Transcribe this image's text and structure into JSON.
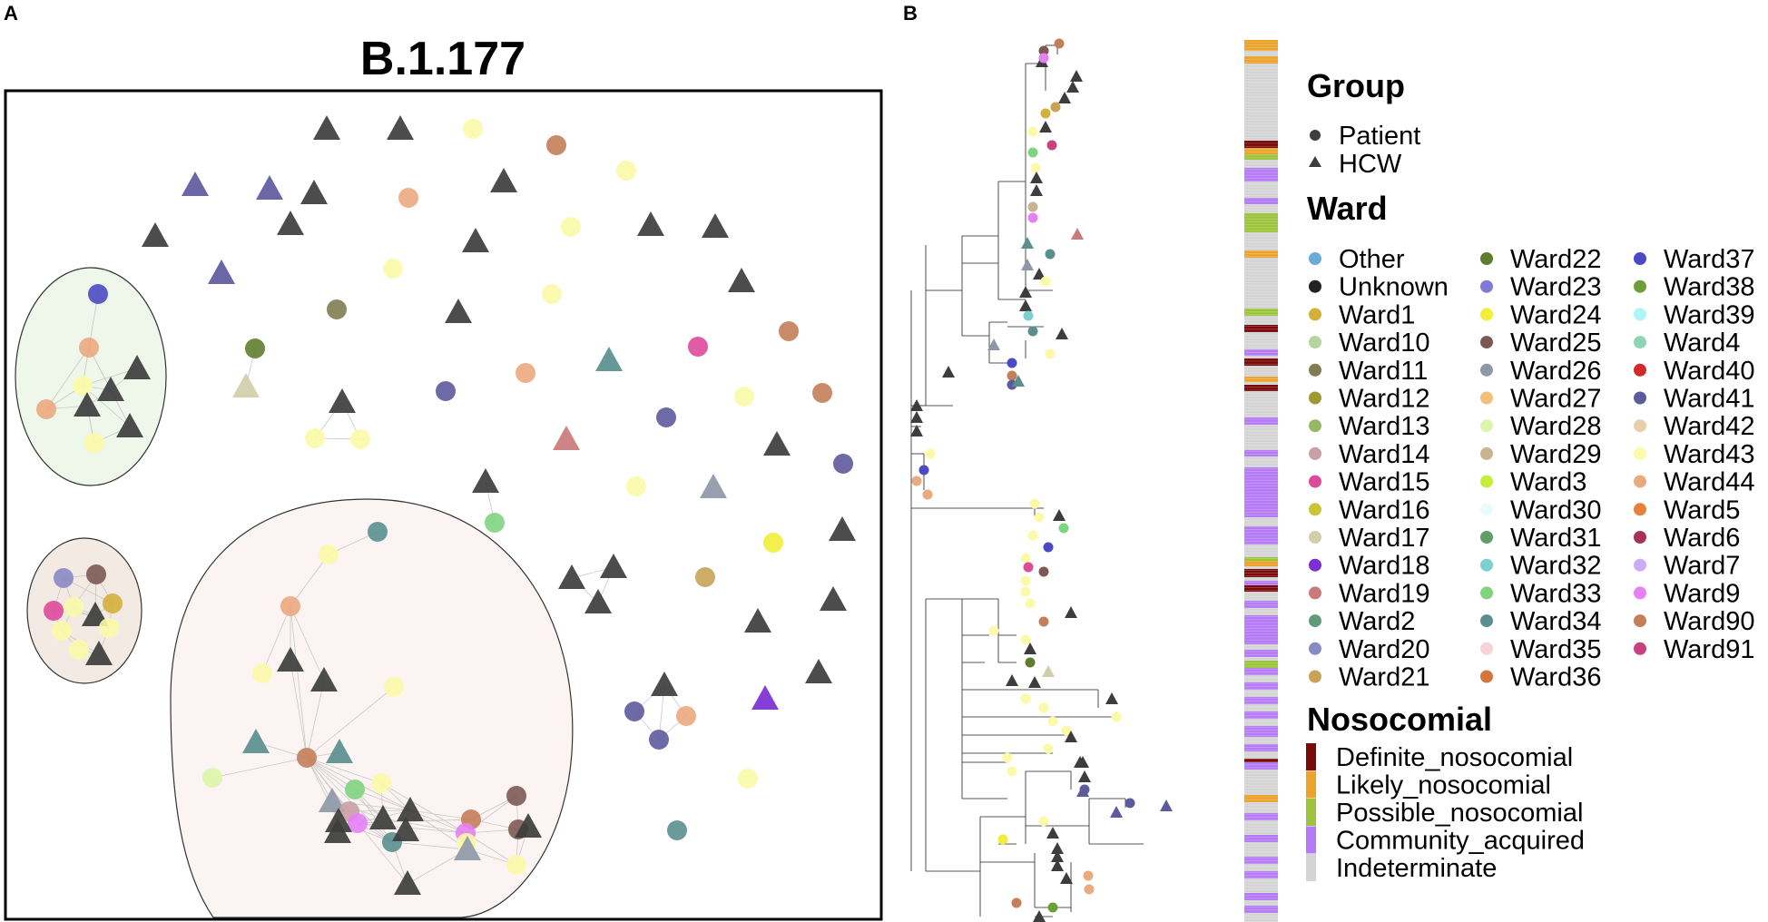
{
  "panel_a": {
    "label": "A",
    "title": "B.1.177"
  },
  "panel_b": {
    "label": "B"
  },
  "legend": {
    "group_title": "Group",
    "group_items": [
      {
        "label": "Patient",
        "shape": "circle"
      },
      {
        "label": "HCW",
        "shape": "triangle"
      }
    ],
    "ward_title": "Ward",
    "wards": [
      {
        "label": "Other",
        "color": "#6aaad6"
      },
      {
        "label": "Unknown",
        "color": "#222222"
      },
      {
        "label": "Ward1",
        "color": "#d4b03a"
      },
      {
        "label": "Ward10",
        "color": "#b5d4a0"
      },
      {
        "label": "Ward11",
        "color": "#7e7d52"
      },
      {
        "label": "Ward12",
        "color": "#9f9a30"
      },
      {
        "label": "Ward13",
        "color": "#96b865"
      },
      {
        "label": "Ward14",
        "color": "#c9a0a7"
      },
      {
        "label": "Ward15",
        "color": "#de4a9a"
      },
      {
        "label": "Ward16",
        "color": "#c9c43a"
      },
      {
        "label": "Ward17",
        "color": "#cfcfaa"
      },
      {
        "label": "Ward18",
        "color": "#7b2fd4"
      },
      {
        "label": "Ward19",
        "color": "#c97a7a"
      },
      {
        "label": "Ward2",
        "color": "#5f9c7a"
      },
      {
        "label": "Ward20",
        "color": "#8a8ac4"
      },
      {
        "label": "Ward21",
        "color": "#c6a356"
      },
      {
        "label": "Ward22",
        "color": "#5f7d2e"
      },
      {
        "label": "Ward23",
        "color": "#7f7ad6"
      },
      {
        "label": "Ward24",
        "color": "#f2ee3a"
      },
      {
        "label": "Ward25",
        "color": "#7d5954"
      },
      {
        "label": "Ward26",
        "color": "#8f98a8"
      },
      {
        "label": "Ward27",
        "color": "#f2c07a"
      },
      {
        "label": "Ward28",
        "color": "#dcf5a8"
      },
      {
        "label": "Ward29",
        "color": "#c8b48e"
      },
      {
        "label": "Ward3",
        "color": "#c6ef3a"
      },
      {
        "label": "Ward30",
        "color": "#e9fbfb"
      },
      {
        "label": "Ward31",
        "color": "#5e9e6a"
      },
      {
        "label": "Ward32",
        "color": "#7fcfcf"
      },
      {
        "label": "Ward33",
        "color": "#7fd47f"
      },
      {
        "label": "Ward34",
        "color": "#5a8f8f"
      },
      {
        "label": "Ward35",
        "color": "#f5d3d8"
      },
      {
        "label": "Ward36",
        "color": "#d4763a"
      },
      {
        "label": "Ward37",
        "color": "#4a4ac4"
      },
      {
        "label": "Ward38",
        "color": "#6e9e3a"
      },
      {
        "label": "Ward39",
        "color": "#aef5f5"
      },
      {
        "label": "Ward4",
        "color": "#8fd4b4"
      },
      {
        "label": "Ward40",
        "color": "#d42a2a"
      },
      {
        "label": "Ward41",
        "color": "#5e5a9e"
      },
      {
        "label": "Ward42",
        "color": "#e9cfa9"
      },
      {
        "label": "Ward43",
        "color": "#fbfaa9"
      },
      {
        "label": "Ward44",
        "color": "#eba97e"
      },
      {
        "label": "Ward5",
        "color": "#e6803a"
      },
      {
        "label": "Ward6",
        "color": "#a8305e"
      },
      {
        "label": "Ward7",
        "color": "#c9aef5"
      },
      {
        "label": "Ward9",
        "color": "#e680f5"
      },
      {
        "label": "Ward90",
        "color": "#c47e5a"
      },
      {
        "label": "Ward91",
        "color": "#c9407e"
      }
    ],
    "nosocomial_title": "Nosocomial",
    "nosocomial": [
      {
        "label": "Definite_nosocomial",
        "color": "#7a0a0a"
      },
      {
        "label": "Likely_nosocomial",
        "color": "#eba32a"
      },
      {
        "label": "Possible_nosocomial",
        "color": "#9cc43a"
      },
      {
        "label": "Community_acquired",
        "color": "#b57af5"
      },
      {
        "label": "Indeterminate",
        "color": "#d4d4d4"
      }
    ]
  },
  "colors": {
    "hcw": "#3d3d3d",
    "edge": "#c8c8c8",
    "cluster1_fill": "#eef7ea",
    "cluster2_fill": "#f3eae4",
    "cluster3_fill": "#fbf4f2",
    "tree_line": "#222222"
  }
}
